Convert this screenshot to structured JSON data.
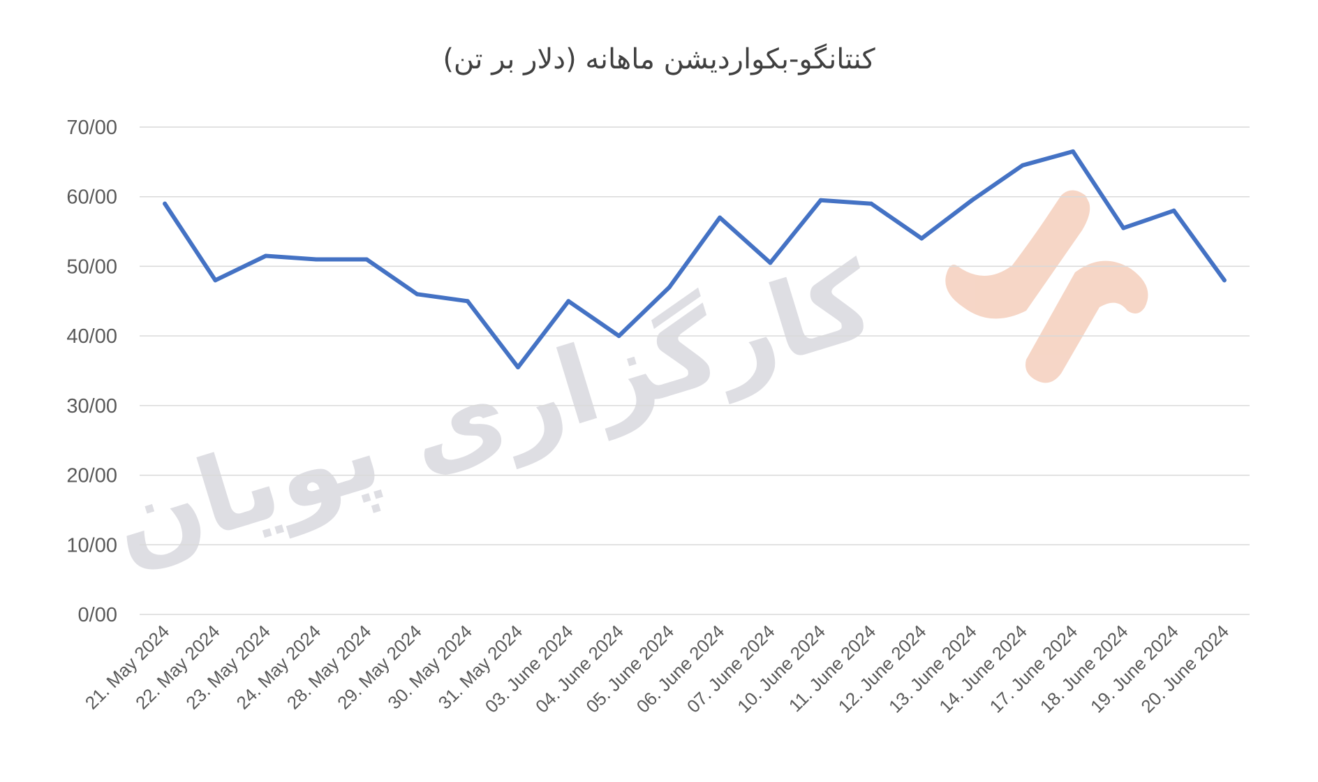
{
  "chart_data": {
    "type": "line",
    "title": "کنتانگو-بکواردیشن ماهانه (دلار بر تن)",
    "xlabel": "",
    "ylabel": "",
    "ylim": [
      0,
      70
    ],
    "yticks": [
      0,
      10,
      20,
      30,
      40,
      50,
      60,
      70
    ],
    "ytick_labels": [
      "0/00",
      "10/00",
      "20/00",
      "30/00",
      "40/00",
      "50/00",
      "60/00",
      "70/00"
    ],
    "grid": true,
    "legend": "none",
    "categories": [
      "21. May 2024",
      "22. May 2024",
      "23. May 2024",
      "24. May 2024",
      "28. May 2024",
      "29. May 2024",
      "30. May 2024",
      "31. May 2024",
      "03. June 2024",
      "04. June 2024",
      "05. June 2024",
      "06. June 2024",
      "07. June 2024",
      "10. June 2024",
      "11. June 2024",
      "12. June 2024",
      "13. June 2024",
      "14. June 2024",
      "17. June 2024",
      "18. June 2024",
      "19. June 2024",
      "20. June 2024"
    ],
    "series": [
      {
        "color": "#4472c4",
        "values": [
          59,
          48,
          51.5,
          51,
          51,
          46,
          45,
          35.5,
          45,
          40,
          47,
          57,
          50.5,
          59.5,
          59,
          54,
          59.5,
          64.5,
          66.5,
          55.5,
          58,
          48
        ]
      }
    ]
  },
  "watermark": {
    "text": "کارگزاری پویان",
    "logo": "pooyan-logo"
  },
  "colors": {
    "line": "#4472c4",
    "grid": "#d9d9d9",
    "tick_text": "#595959",
    "title_text": "#404040",
    "watermark_text": "#d9d9df",
    "watermark_logo": "#f6d4c4"
  }
}
